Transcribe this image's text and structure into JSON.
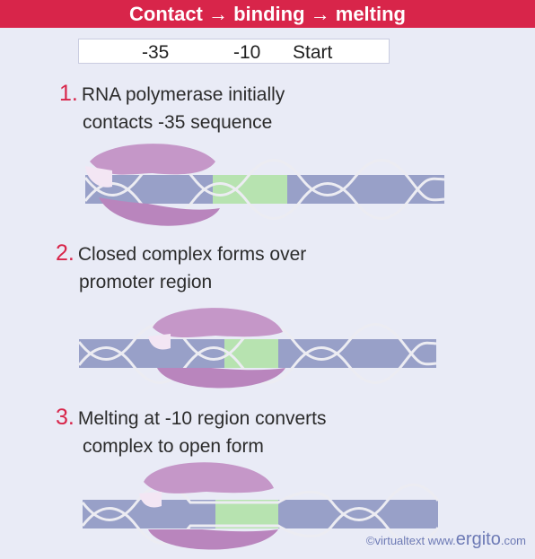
{
  "header": {
    "title": "Contact → binding → melting"
  },
  "ruler": {
    "label_35": "-35",
    "label_10": "-10",
    "label_start": "Start"
  },
  "steps": [
    {
      "num": "1.",
      "line1": "RNA polymerase initially",
      "line2": "contacts -35 sequence"
    },
    {
      "num": "2.",
      "line1": "Closed complex forms over",
      "line2": "promoter region"
    },
    {
      "num": "3.",
      "line1": "Melting at -10 region converts",
      "line2": "complex to open form"
    }
  ],
  "credit": {
    "prefix": "©virtualtext www.",
    "brand": "ergito",
    "suffix": ".com"
  },
  "colors": {
    "header": "#d8254a",
    "dna": "#98a0c8",
    "promoter": "#b7e3b0",
    "polymerase": "#c597c8"
  }
}
